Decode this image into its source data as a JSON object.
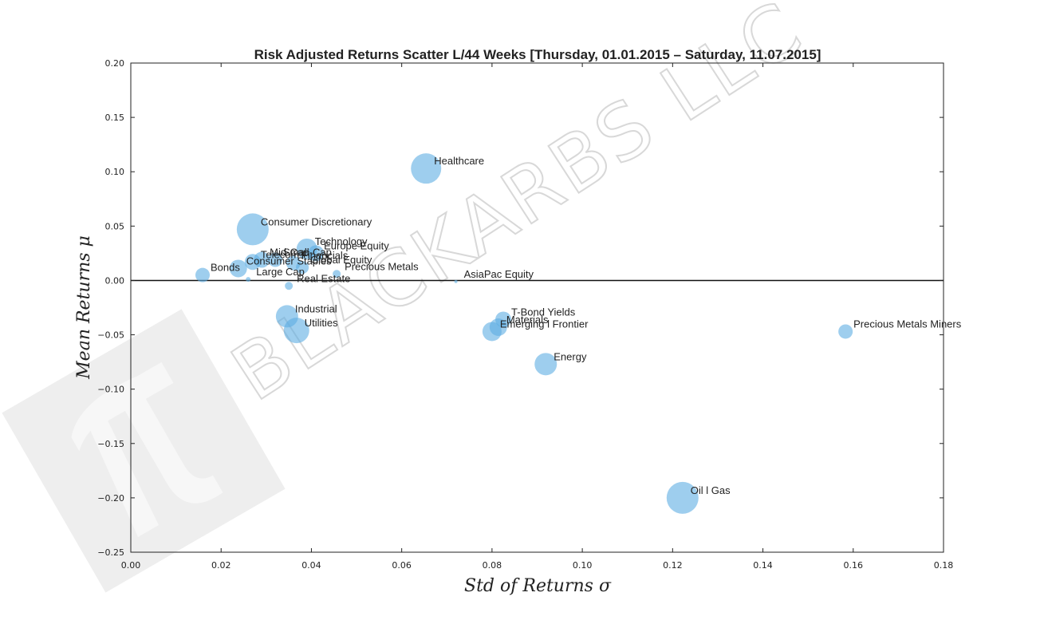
{
  "chart_data": {
    "type": "scatter",
    "title": "Risk Adjusted Returns Scatter L/44 Weeks [Thursday, 01.01.2015 – Saturday, 11.07.2015]",
    "xlabel": "Std of Returns  σ",
    "ylabel": "Mean Returns  μ",
    "xlim": [
      0.0,
      0.18
    ],
    "ylim": [
      -0.25,
      0.2
    ],
    "xticks": [
      "0.00",
      "0.02",
      "0.04",
      "0.06",
      "0.08",
      "0.10",
      "0.12",
      "0.14",
      "0.16",
      "0.18"
    ],
    "yticks": [
      "0.20",
      "0.15",
      "0.10",
      "0.05",
      "0.00",
      "−0.05",
      "−0.10",
      "−0.15",
      "−0.20",
      "−0.25"
    ],
    "grid": false,
    "hline_y": 0.0,
    "marker_color": "#5DADE2",
    "points": [
      {
        "label": "Bonds",
        "x": 0.0159,
        "y": 0.005,
        "size": 9
      },
      {
        "label": "Large Cap",
        "x": 0.026,
        "y": 0.001,
        "size": 3
      },
      {
        "label": "Consumer Staples",
        "x": 0.0238,
        "y": 0.011,
        "size": 11
      },
      {
        "label": "Telecom",
        "x": 0.027,
        "y": 0.017,
        "size": 10
      },
      {
        "label": "Mid-Cap",
        "x": 0.029,
        "y": 0.019,
        "size": 10
      },
      {
        "label": "Small-Cap",
        "x": 0.032,
        "y": 0.019,
        "size": 9
      },
      {
        "label": "Financials",
        "x": 0.036,
        "y": 0.016,
        "size": 9
      },
      {
        "label": "Global Equity",
        "x": 0.038,
        "y": 0.012,
        "size": 8
      },
      {
        "label": "Technology",
        "x": 0.039,
        "y": 0.029,
        "size": 13
      },
      {
        "label": "Europe Equity",
        "x": 0.041,
        "y": 0.025,
        "size": 10
      },
      {
        "label": "Precious Metals",
        "x": 0.0456,
        "y": 0.006,
        "size": 5
      },
      {
        "label": "Real Estate",
        "x": 0.035,
        "y": -0.005,
        "size": 5
      },
      {
        "label": "Consumer Discretionary",
        "x": 0.027,
        "y": 0.047,
        "size": 20
      },
      {
        "label": "Healthcare",
        "x": 0.0654,
        "y": 0.103,
        "size": 19
      },
      {
        "label": "AsiaPac Equity",
        "x": 0.072,
        "y": -0.001,
        "size": 2
      },
      {
        "label": "Industrial",
        "x": 0.0346,
        "y": -0.033,
        "size": 14
      },
      {
        "label": "Utilities",
        "x": 0.0367,
        "y": -0.046,
        "size": 16
      },
      {
        "label": "T-Bond Yields",
        "x": 0.0825,
        "y": -0.036,
        "size": 10
      },
      {
        "label": "Materials",
        "x": 0.0814,
        "y": -0.043,
        "size": 11
      },
      {
        "label": "Emerging l Frontier",
        "x": 0.08,
        "y": -0.047,
        "size": 12
      },
      {
        "label": "Energy",
        "x": 0.0919,
        "y": -0.077,
        "size": 14
      },
      {
        "label": "Oil l Gas",
        "x": 0.1222,
        "y": -0.2,
        "size": 20
      },
      {
        "label": "Precious Metals Miners",
        "x": 0.1583,
        "y": -0.047,
        "size": 9
      }
    ]
  },
  "watermark": {
    "text": "BLACKARBS LLC",
    "logo_icon": "pi-logo-icon"
  }
}
